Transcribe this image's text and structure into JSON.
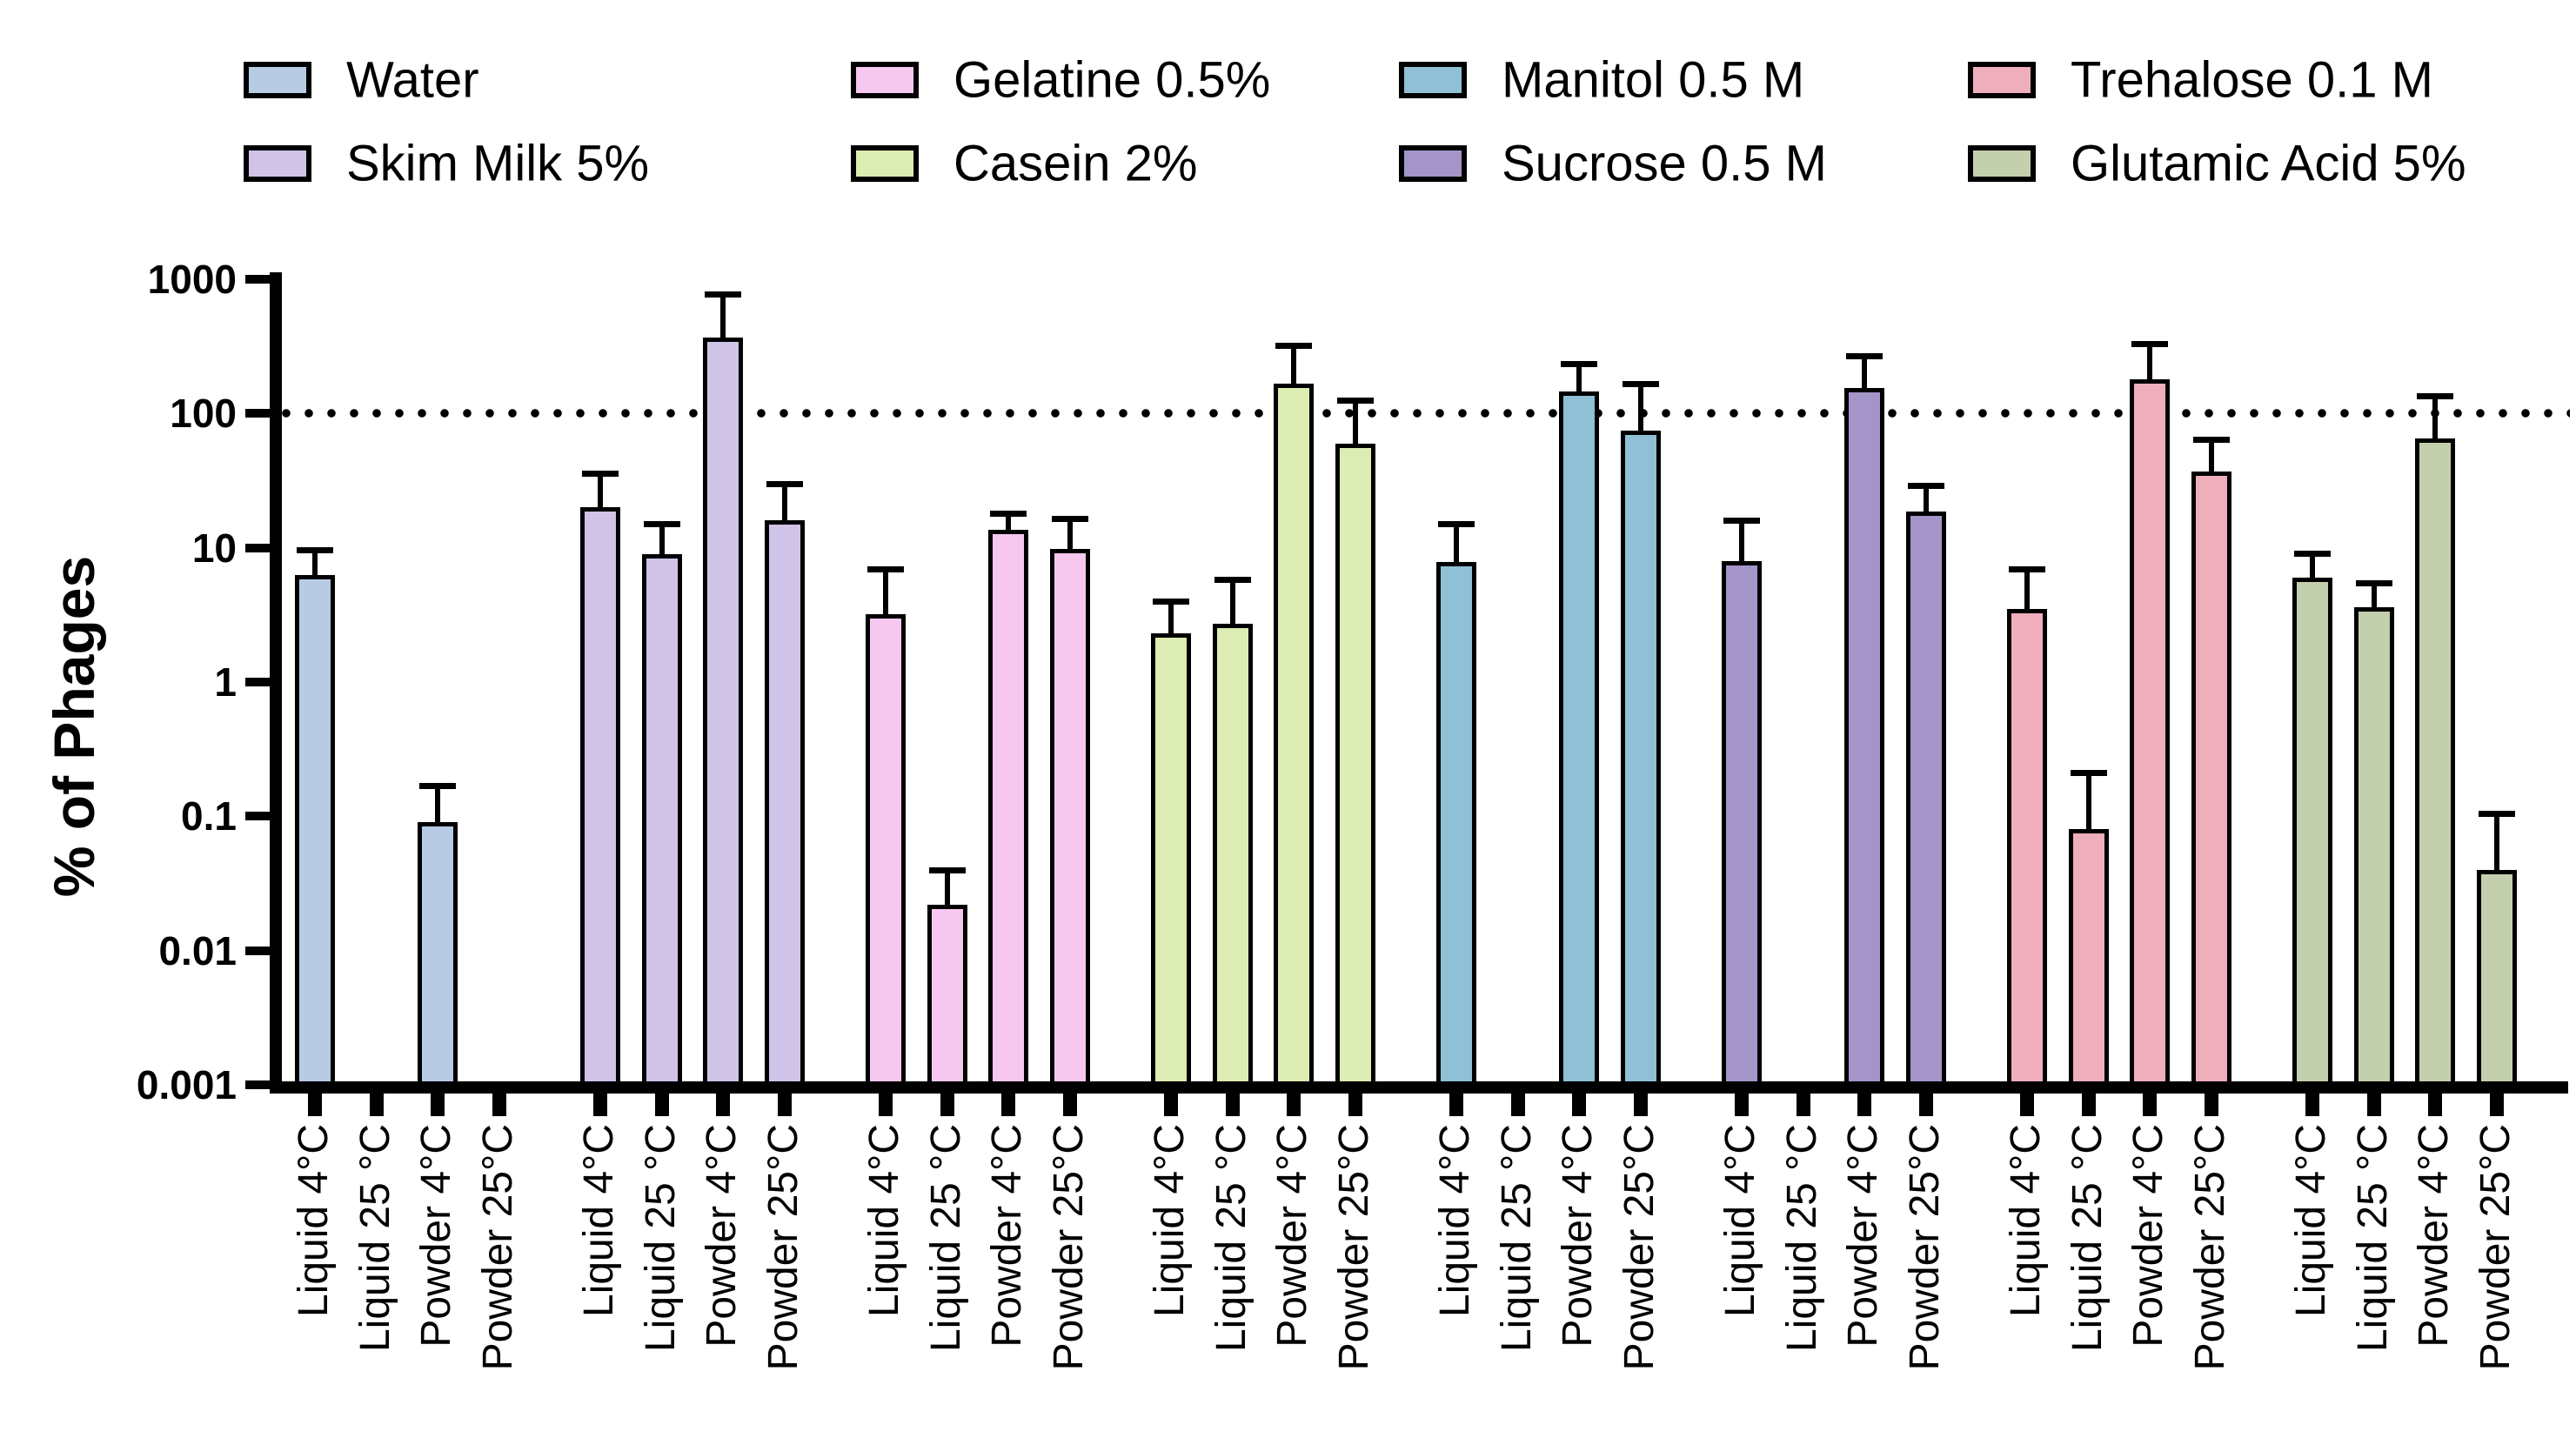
{
  "chart_data": {
    "type": "bar",
    "y_scale": "log",
    "title": "",
    "xlabel": "",
    "ylabel": "% of Phages",
    "ylim": [
      0.001,
      1000
    ],
    "ytick_labels": [
      "1000",
      "100",
      "10",
      "1",
      "0.1",
      "0.01",
      "0.001"
    ],
    "ytick_values": [
      1000,
      100,
      10,
      1,
      0.1,
      0.01,
      0.001
    ],
    "reference_line_value": 100,
    "grid": "off",
    "legend_position": "top",
    "categories": [
      "Liquid 4°C",
      "Liquid 25 °C",
      "Powder 4°C",
      "Powder 25°C"
    ],
    "series": [
      {
        "name": "Water",
        "color": "#b7cbe5",
        "values": [
          6.3,
          null,
          0.09,
          null
        ],
        "errors_high": [
          9.6,
          null,
          0.17,
          null
        ]
      },
      {
        "name": "Skim Milk 5%",
        "color": "#cfc3e8",
        "values": [
          20,
          9,
          370,
          16
        ],
        "errors_high": [
          36,
          15,
          780,
          30
        ]
      },
      {
        "name": "Gelatine 0.5%",
        "color": "#f6c8f0",
        "values": [
          3.2,
          0.022,
          13.5,
          9.8
        ],
        "errors_high": [
          6.9,
          0.04,
          18,
          16.5
        ]
      },
      {
        "name": "Casein 2%",
        "color": "#dcecb2",
        "values": [
          2.3,
          2.7,
          166,
          60
        ],
        "errors_high": [
          4.0,
          5.8,
          320,
          125
        ]
      },
      {
        "name": "Manitol 0.5 M",
        "color": "#8fc0d5",
        "values": [
          7.8,
          null,
          145,
          74
        ],
        "errors_high": [
          15,
          null,
          235,
          168
        ]
      },
      {
        "name": "Sucrose 0.5 M",
        "color": "#a495c9",
        "values": [
          8.0,
          null,
          155,
          18.5
        ],
        "errors_high": [
          16,
          null,
          270,
          29
        ]
      },
      {
        "name": "Trehalose 0.1 M",
        "color": "#efaebc",
        "values": [
          3.5,
          0.08,
          180,
          37
        ],
        "errors_high": [
          7.0,
          0.21,
          330,
          64
        ]
      },
      {
        "name": "Glutamic Acid 5%",
        "color": "#c3cfad",
        "values": [
          6.0,
          3.6,
          65,
          0.04
        ],
        "errors_high": [
          9.1,
          5.5,
          136,
          0.105
        ]
      }
    ],
    "legend_columns": [
      [
        "Water",
        "Skim Milk 5%"
      ],
      [
        "Gelatine 0.5%",
        "Casein 2%"
      ],
      [
        "Manitol 0.5 M",
        "Sucrose 0.5 M"
      ],
      [
        "Trehalose 0.1 M",
        "Glutamic Acid 5%"
      ]
    ]
  }
}
